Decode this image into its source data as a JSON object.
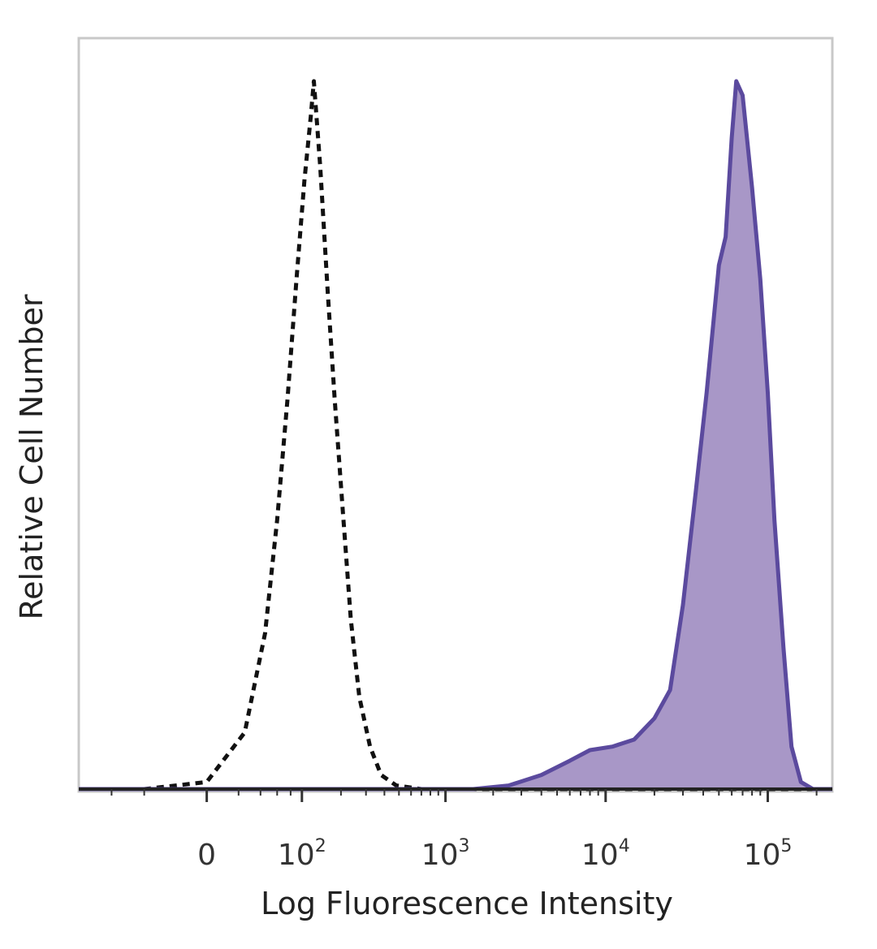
{
  "chart_data": {
    "type": "area",
    "xlabel": "Log Fluorescence Intensity",
    "ylabel": "Relative Cell Number",
    "x_scale": "biexponential",
    "x_ticks": [
      {
        "value": 0,
        "base": "0",
        "exp": ""
      },
      {
        "value": 100,
        "base": "10",
        "exp": "2"
      },
      {
        "value": 1000,
        "base": "10",
        "exp": "3"
      },
      {
        "value": 10000,
        "base": "10",
        "exp": "4"
      },
      {
        "value": 100000,
        "base": "10",
        "exp": "5"
      }
    ],
    "xlim": [
      -180,
      250000
    ],
    "ylim": [
      0,
      100
    ],
    "grid": false,
    "series": [
      {
        "style": "dashed-outline",
        "color": "#111111",
        "points": [
          [
            -180,
            0
          ],
          [
            -50,
            0
          ],
          [
            0,
            1
          ],
          [
            25,
            8
          ],
          [
            45,
            22
          ],
          [
            60,
            38
          ],
          [
            75,
            55
          ],
          [
            90,
            72
          ],
          [
            105,
            86
          ],
          [
            118,
            95
          ],
          [
            125,
            100
          ],
          [
            140,
            88
          ],
          [
            160,
            70
          ],
          [
            180,
            55
          ],
          [
            205,
            40
          ],
          [
            235,
            24
          ],
          [
            270,
            13
          ],
          [
            320,
            6
          ],
          [
            380,
            2
          ],
          [
            480,
            0.5
          ],
          [
            700,
            0
          ],
          [
            2000,
            0
          ],
          [
            10000,
            0
          ],
          [
            250000,
            0
          ]
        ]
      },
      {
        "style": "filled",
        "color": "#5b4a9e",
        "fill": "#a897c7",
        "points": [
          [
            -180,
            0
          ],
          [
            1500,
            0
          ],
          [
            2500,
            0.5
          ],
          [
            4000,
            2
          ],
          [
            6000,
            4
          ],
          [
            8000,
            5.5
          ],
          [
            11000,
            6
          ],
          [
            15000,
            7
          ],
          [
            20000,
            10
          ],
          [
            25000,
            14
          ],
          [
            30000,
            26
          ],
          [
            36000,
            42
          ],
          [
            42000,
            56
          ],
          [
            50000,
            74
          ],
          [
            55000,
            78
          ],
          [
            60000,
            92
          ],
          [
            64000,
            100
          ],
          [
            70000,
            98
          ],
          [
            80000,
            85
          ],
          [
            90000,
            72
          ],
          [
            100000,
            56
          ],
          [
            110000,
            38
          ],
          [
            125000,
            20
          ],
          [
            140000,
            6
          ],
          [
            160000,
            1
          ],
          [
            190000,
            0
          ],
          [
            250000,
            0
          ]
        ]
      }
    ]
  }
}
